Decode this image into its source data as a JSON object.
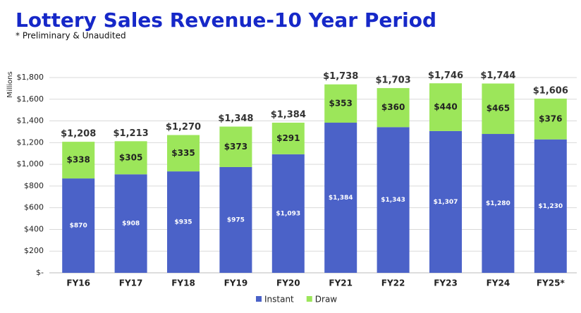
{
  "chart_data": {
    "type": "stacked-bar",
    "title": "Lottery Sales Revenue-10 Year Period",
    "subtitle": "* Preliminary & Unaudited",
    "y_label": "Millions",
    "categories": [
      "FY16",
      "FY17",
      "FY18",
      "FY19",
      "FY20",
      "FY21",
      "FY22",
      "FY23",
      "FY24",
      "FY25*"
    ],
    "series": [
      {
        "name": "Instant",
        "color": "#4b62c8",
        "values": [
          870,
          908,
          935,
          975,
          1093,
          1384,
          1343,
          1307,
          1280,
          1230
        ],
        "value_labels": [
          "$870",
          "$908",
          "$935",
          "$975",
          "$1,093",
          "$1,384",
          "$1,343",
          "$1,307",
          "$1,280",
          "$1,230"
        ]
      },
      {
        "name": "Draw",
        "color": "#9ce65a",
        "values": [
          338,
          305,
          335,
          373,
          291,
          353,
          360,
          440,
          465,
          376
        ],
        "value_labels": [
          "$338",
          "$305",
          "$335",
          "$373",
          "$291",
          "$353",
          "$360",
          "$440",
          "$465",
          "$376"
        ]
      }
    ],
    "totals": [
      1208,
      1213,
      1270,
      1348,
      1384,
      1738,
      1703,
      1746,
      1744,
      1606
    ],
    "total_labels": [
      "$1,208",
      "$1,213",
      "$1,270",
      "$1,348",
      "$1,384",
      "$1,738",
      "$1,703",
      "$1,746",
      "$1,744",
      "$1,606"
    ],
    "ylim": [
      0,
      1800
    ],
    "yticks": [
      {
        "value": 0,
        "label": "$-"
      },
      {
        "value": 200,
        "label": "$200"
      },
      {
        "value": 400,
        "label": "$400"
      },
      {
        "value": 600,
        "label": "$600"
      },
      {
        "value": 800,
        "label": "$800"
      },
      {
        "value": 1000,
        "label": "$1,000"
      },
      {
        "value": 1200,
        "label": "$1,200"
      },
      {
        "value": 1400,
        "label": "$1,400"
      },
      {
        "value": 1600,
        "label": "$1,600"
      },
      {
        "value": 1800,
        "label": "$1,800"
      }
    ],
    "grid": true,
    "legend": "bottom"
  }
}
